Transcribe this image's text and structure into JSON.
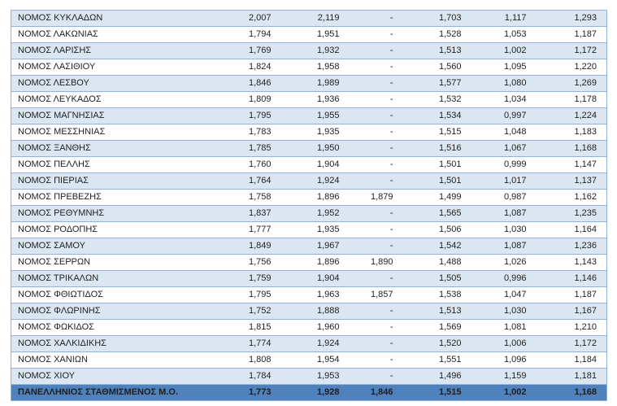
{
  "table": {
    "rows": [
      {
        "name": "ΝΟΜΟΣ ΚΥΚΛΑΔΩΝ",
        "values": [
          "2,007",
          "2,119",
          "-",
          "1,703",
          "1,117",
          "1,293"
        ]
      },
      {
        "name": "ΝΟΜΟΣ ΛΑΚΩΝΙΑΣ",
        "values": [
          "1,794",
          "1,951",
          "-",
          "1,528",
          "1,053",
          "1,187"
        ]
      },
      {
        "name": "ΝΟΜΟΣ ΛΑΡΙΣΗΣ",
        "values": [
          "1,769",
          "1,932",
          "-",
          "1,513",
          "1,002",
          "1,172"
        ]
      },
      {
        "name": "ΝΟΜΟΣ ΛΑΣΙΘΙΟΥ",
        "values": [
          "1,824",
          "1,958",
          "-",
          "1,560",
          "1,095",
          "1,220"
        ]
      },
      {
        "name": "ΝΟΜΟΣ ΛΕΣΒΟΥ",
        "values": [
          "1,846",
          "1,989",
          "-",
          "1,577",
          "1,080",
          "1,269"
        ]
      },
      {
        "name": "ΝΟΜΟΣ ΛΕΥΚΑΔΟΣ",
        "values": [
          "1,809",
          "1,936",
          "-",
          "1,532",
          "1,034",
          "1,178"
        ]
      },
      {
        "name": "ΝΟΜΟΣ ΜΑΓΝΗΣΙΑΣ",
        "values": [
          "1,795",
          "1,955",
          "-",
          "1,534",
          "0,997",
          "1,224"
        ]
      },
      {
        "name": "ΝΟΜΟΣ ΜΕΣΣΗΝΙΑΣ",
        "values": [
          "1,783",
          "1,935",
          "-",
          "1,515",
          "1,048",
          "1,183"
        ]
      },
      {
        "name": "ΝΟΜΟΣ ΞΑΝΘΗΣ",
        "values": [
          "1,785",
          "1,950",
          "-",
          "1,516",
          "1,067",
          "1,168"
        ]
      },
      {
        "name": "ΝΟΜΟΣ ΠΕΛΛΗΣ",
        "values": [
          "1,760",
          "1,904",
          "-",
          "1,501",
          "0,999",
          "1,147"
        ]
      },
      {
        "name": "ΝΟΜΟΣ ΠΙΕΡΙΑΣ",
        "values": [
          "1,764",
          "1,924",
          "-",
          "1,501",
          "1,017",
          "1,137"
        ]
      },
      {
        "name": "ΝΟΜΟΣ ΠΡΕΒΕΖΗΣ",
        "values": [
          "1,758",
          "1,896",
          "1,879",
          "1,499",
          "0,987",
          "1,162"
        ]
      },
      {
        "name": "ΝΟΜΟΣ ΡΕΘΥΜΝΗΣ",
        "values": [
          "1,837",
          "1,952",
          "-",
          "1,565",
          "1,087",
          "1,235"
        ]
      },
      {
        "name": "ΝΟΜΟΣ ΡΟΔΟΠΗΣ",
        "values": [
          "1,777",
          "1,935",
          "-",
          "1,506",
          "1,030",
          "1,164"
        ]
      },
      {
        "name": "ΝΟΜΟΣ ΣΑΜΟΥ",
        "values": [
          "1,849",
          "1,967",
          "-",
          "1,542",
          "1,087",
          "1,236"
        ]
      },
      {
        "name": "ΝΟΜΟΣ ΣΕΡΡΩΝ",
        "values": [
          "1,756",
          "1,896",
          "1,890",
          "1,488",
          "1,026",
          "1,143"
        ]
      },
      {
        "name": "ΝΟΜΟΣ ΤΡΙΚΑΛΩΝ",
        "values": [
          "1,759",
          "1,904",
          "-",
          "1,505",
          "0,996",
          "1,146"
        ]
      },
      {
        "name": "ΝΟΜΟΣ ΦΘΙΩΤΙΔΟΣ",
        "values": [
          "1,795",
          "1,963",
          "1,857",
          "1,538",
          "1,047",
          "1,187"
        ]
      },
      {
        "name": "ΝΟΜΟΣ ΦΛΩΡΙΝΗΣ",
        "values": [
          "1,752",
          "1,888",
          "-",
          "1,513",
          "1,030",
          "1,167"
        ]
      },
      {
        "name": "ΝΟΜΟΣ ΦΩΚΙΔΟΣ",
        "values": [
          "1,815",
          "1,960",
          "-",
          "1,569",
          "1,081",
          "1,210"
        ]
      },
      {
        "name": "ΝΟΜΟΣ ΧΑΛΚΙΔΙΚΗΣ",
        "values": [
          "1,774",
          "1,924",
          "-",
          "1,520",
          "1,006",
          "1,172"
        ]
      },
      {
        "name": "ΝΟΜΟΣ ΧΑΝΙΩΝ",
        "values": [
          "1,808",
          "1,954",
          "-",
          "1,551",
          "1,096",
          "1,184"
        ]
      },
      {
        "name": "ΝΟΜΟΣ ΧΙΟΥ",
        "values": [
          "1,784",
          "1,953",
          "-",
          "1,496",
          "1,159",
          "1,181"
        ]
      }
    ],
    "footer": {
      "name": "ΠΑΝΕΛΛΗΝΙΟΣ ΣΤΑΘΜΙΣΜΕΝΟΣ Μ.Ο.",
      "values": [
        "1,773",
        "1,928",
        "1,846",
        "1,515",
        "1,002",
        "1,168"
      ]
    },
    "colors": {
      "stripe_bg": "#DCE6F1",
      "plain_bg": "#FFFFFF",
      "border": "#95B3D7",
      "footer_bg": "#4F81BD",
      "footer_text": "#FFFFFF",
      "text": "#1F1F1F"
    }
  }
}
